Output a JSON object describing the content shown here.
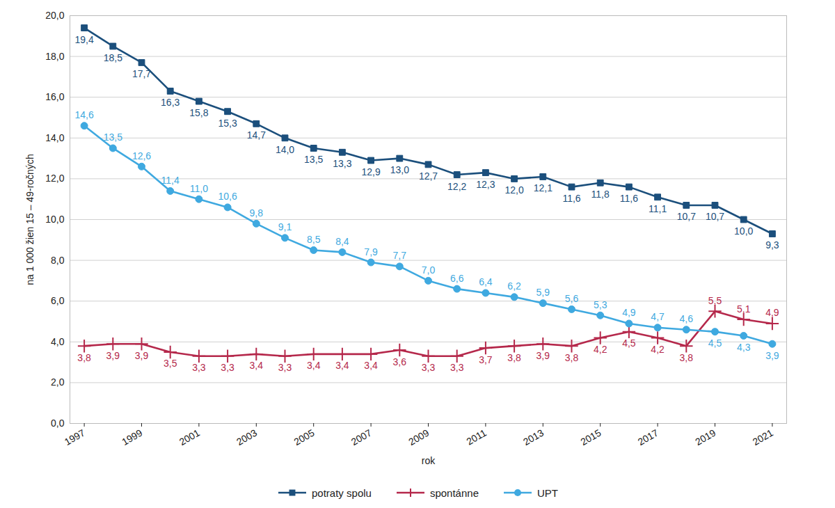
{
  "chart_data": {
    "type": "line",
    "x_label": "rok",
    "y_label": "na 1 000 žien 15 – 49-ročných",
    "x": [
      1997,
      1998,
      1999,
      2000,
      2001,
      2002,
      2003,
      2004,
      2005,
      2006,
      2007,
      2008,
      2009,
      2010,
      2011,
      2012,
      2013,
      2014,
      2015,
      2016,
      2017,
      2018,
      2019,
      2020,
      2021
    ],
    "xlim": [
      1996.5,
      2021.5
    ],
    "xticks": [
      1997,
      1999,
      2001,
      2003,
      2005,
      2007,
      2009,
      2011,
      2013,
      2015,
      2017,
      2019,
      2021
    ],
    "ylim": [
      0,
      20
    ],
    "yticks": [
      {
        "value": 0,
        "label": "0,0"
      },
      {
        "value": 2,
        "label": "2,0"
      },
      {
        "value": 4,
        "label": "4,0"
      },
      {
        "value": 6,
        "label": "6,0"
      },
      {
        "value": 8,
        "label": "8,0"
      },
      {
        "value": 10,
        "label": "10,0"
      },
      {
        "value": 12,
        "label": "12,0"
      },
      {
        "value": 14,
        "label": "14,0"
      },
      {
        "value": 16,
        "label": "16,0"
      },
      {
        "value": 18,
        "label": "18,0"
      },
      {
        "value": 20,
        "label": "20,0"
      }
    ],
    "grid": true,
    "legend": "bottom",
    "data_labels": true,
    "series": [
      {
        "name": "potraty spolu",
        "color": "#1b4f7c",
        "marker": "square",
        "values": [
          19.4,
          18.5,
          17.7,
          16.3,
          15.8,
          15.3,
          14.7,
          14.0,
          13.5,
          13.3,
          12.9,
          13.0,
          12.7,
          12.2,
          12.3,
          12.0,
          12.1,
          11.6,
          11.8,
          11.6,
          11.1,
          10.7,
          10.7,
          10.0,
          9.3
        ],
        "value_labels": [
          "19,4",
          "18,5",
          "17,7",
          "16,3",
          "15,8",
          "15,3",
          "14,7",
          "14,0",
          "13,5",
          "13,3",
          "12,9",
          "13,0",
          "12,7",
          "12,2",
          "12,3",
          "12,0",
          "12,1",
          "11,6",
          "11,8",
          "11,6",
          "11,1",
          "10,7",
          "10,7",
          "10,0",
          "9,3"
        ]
      },
      {
        "name": "spontánne",
        "color": "#b5284b",
        "marker": "plus",
        "values": [
          3.8,
          3.9,
          3.9,
          3.5,
          3.3,
          3.3,
          3.4,
          3.3,
          3.4,
          3.4,
          3.4,
          3.6,
          3.3,
          3.3,
          3.7,
          3.8,
          3.9,
          3.8,
          4.2,
          4.5,
          4.2,
          3.8,
          5.5,
          5.1,
          4.9
        ],
        "value_labels": [
          "3,8",
          "3,9",
          "3,9",
          "3,5",
          "3,3",
          "3,3",
          "3,4",
          "3,3",
          "3,4",
          "3,4",
          "3,4",
          "3,6",
          "3,3",
          "3,3",
          "3,7",
          "3,8",
          "3,9",
          "3,8",
          "4,2",
          "4,5",
          "4,2",
          "3,8",
          "5,5",
          "5,1",
          "4,9"
        ]
      },
      {
        "name": "UPT",
        "color": "#3fa9e0",
        "marker": "circle",
        "values": [
          14.6,
          13.5,
          12.6,
          11.4,
          11.0,
          10.6,
          9.8,
          9.1,
          8.5,
          8.4,
          7.9,
          7.7,
          7.0,
          6.6,
          6.4,
          6.2,
          5.9,
          5.6,
          5.3,
          4.9,
          4.7,
          4.6,
          4.5,
          4.3,
          3.9
        ],
        "value_labels": [
          "14,6",
          "13,5",
          "12,6",
          "11,4",
          "11,0",
          "10,6",
          "9,8",
          "9,1",
          "8,5",
          "8,4",
          "7,9",
          "7,7",
          "7,0",
          "6,6",
          "6,4",
          "6,2",
          "5,9",
          "5,6",
          "5,3",
          "4,9",
          "4,7",
          "4,6",
          "4,5",
          "4,3",
          "3,9"
        ]
      }
    ]
  }
}
